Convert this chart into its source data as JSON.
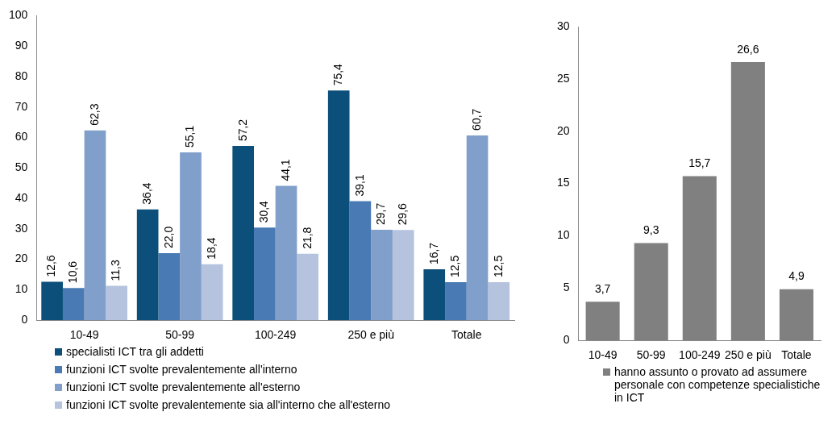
{
  "chart_data": [
    {
      "type": "bar",
      "categories": [
        "10-49",
        "50-99",
        "100-249",
        "250 e più",
        "Totale"
      ],
      "ylim": [
        0,
        100
      ],
      "yticks": [
        0,
        10,
        20,
        30,
        40,
        50,
        60,
        70,
        80,
        90,
        100
      ],
      "grid": false,
      "legend": "bottom",
      "series": [
        {
          "name": "specialisti ICT tra gli addetti",
          "color": "#0b4f7a",
          "values": [
            12.6,
            36.4,
            57.2,
            75.4,
            16.7
          ],
          "value_labels": [
            "12,6",
            "36,4",
            "57,2",
            "75,4",
            "16,7"
          ]
        },
        {
          "name": "funzioni ICT svolte prevalentemente all'interno",
          "color": "#4a7ab4",
          "values": [
            10.6,
            22.0,
            30.4,
            39.1,
            12.5
          ],
          "value_labels": [
            "10,6",
            "22,0",
            "30,4",
            "39,1",
            "12,5"
          ]
        },
        {
          "name": "funzioni ICT svolte prevalentemente all'esterno",
          "color": "#819fcb",
          "values": [
            62.3,
            55.1,
            44.1,
            29.7,
            60.7
          ],
          "value_labels": [
            "62,3",
            "55,1",
            "44,1",
            "29,7",
            "60,7"
          ]
        },
        {
          "name": "funzioni ICT svolte prevalentemente sia all'interno che all'esterno",
          "color": "#b5c3de",
          "values": [
            11.3,
            18.4,
            21.8,
            29.6,
            12.5
          ],
          "value_labels": [
            "11,3",
            "18,4",
            "21,8",
            "29,6",
            "12,5"
          ]
        }
      ]
    },
    {
      "type": "bar",
      "categories": [
        "10-49",
        "50-99",
        "100-249",
        "250 e più",
        "Totale"
      ],
      "ylim": [
        0,
        30
      ],
      "yticks": [
        0,
        5,
        10,
        15,
        20,
        25,
        30
      ],
      "grid": false,
      "legend": "bottom",
      "series": [
        {
          "name": "hanno assunto o provato ad assumere personale con competenze specialistiche in ICT",
          "color": "#808080",
          "values": [
            3.7,
            9.3,
            15.7,
            26.6,
            4.9
          ],
          "value_labels": [
            "3,7",
            "9,3",
            "15,7",
            "26,6",
            "4,9"
          ]
        }
      ]
    }
  ]
}
